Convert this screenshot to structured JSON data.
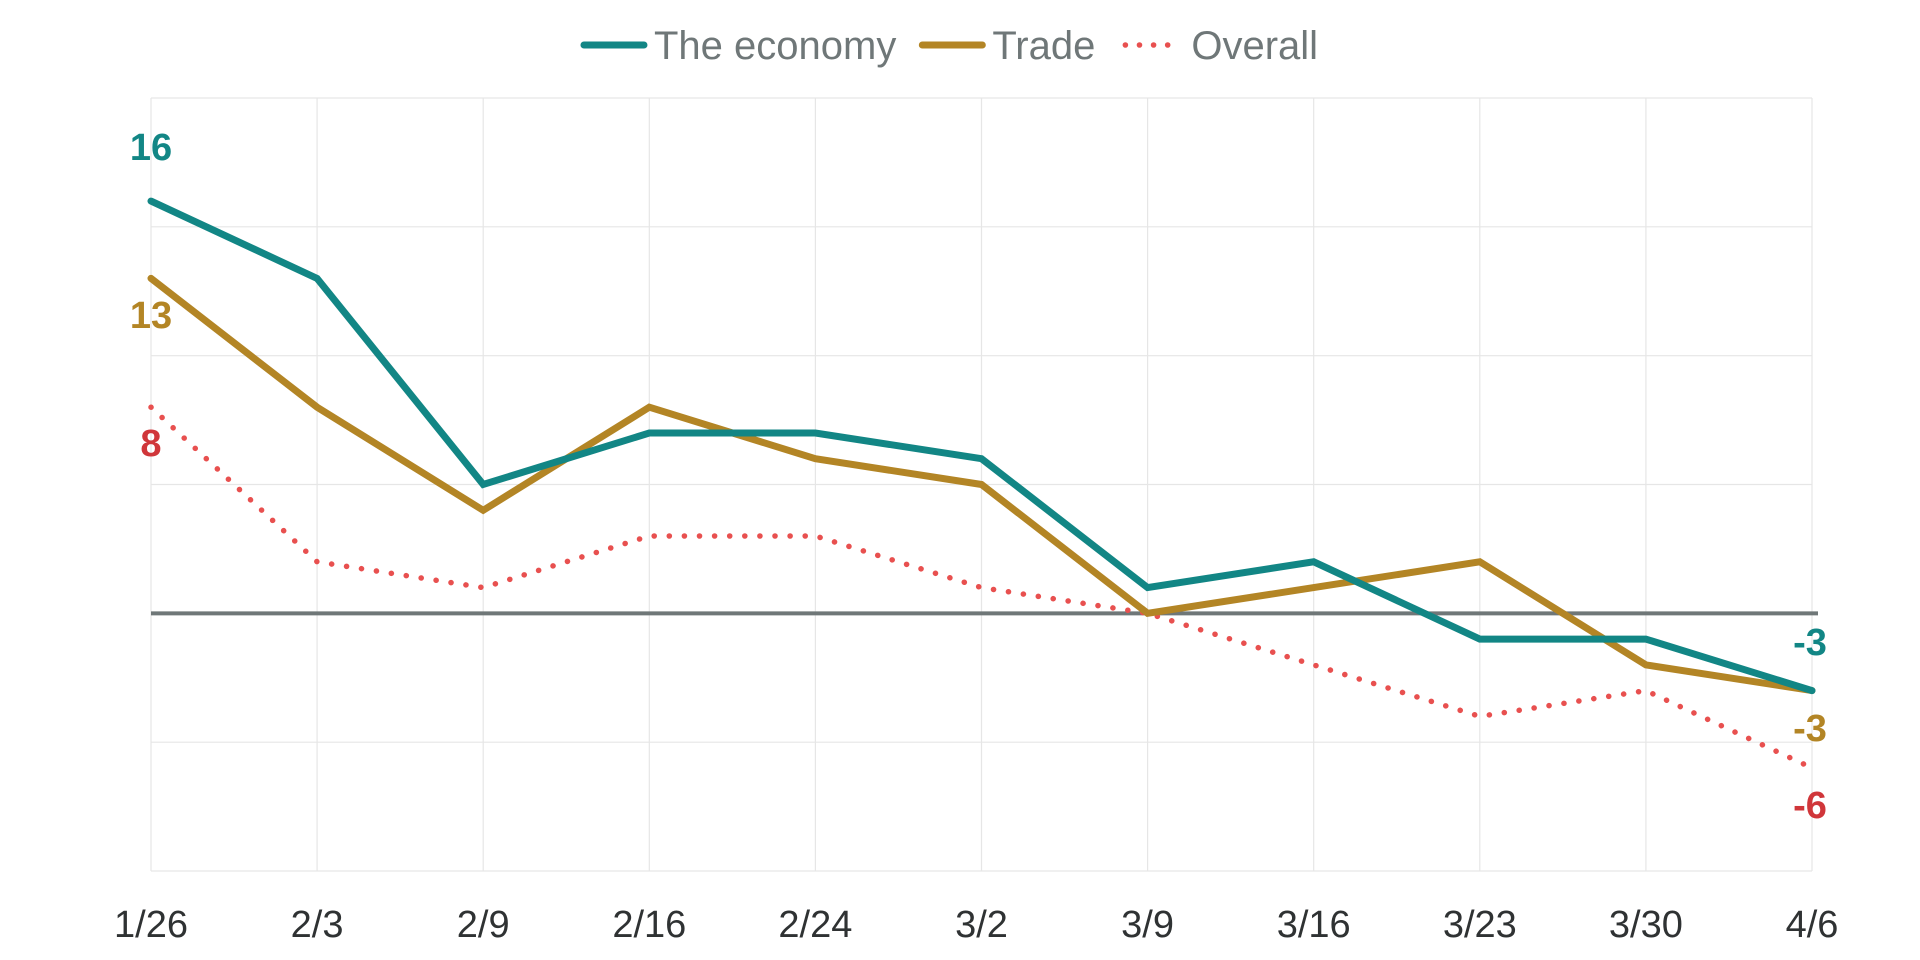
{
  "chart_data": {
    "type": "line",
    "title": "",
    "xlabel": "",
    "ylabel": "",
    "categories": [
      "1/26",
      "2/3",
      "2/9",
      "2/16",
      "2/24",
      "3/2",
      "3/9",
      "3/16",
      "3/23",
      "3/30",
      "4/6"
    ],
    "ylim": [
      -10,
      20
    ],
    "grid": true,
    "legend_position": "top-center",
    "zero_line": true,
    "series": [
      {
        "name": "The economy",
        "color": "#128685",
        "style": "solid",
        "values": [
          16,
          13,
          5,
          7,
          7,
          6,
          1,
          2,
          -1,
          -1,
          -3
        ],
        "start_label": "16",
        "end_label": "-3"
      },
      {
        "name": "Trade",
        "color": "#b38525",
        "style": "solid",
        "values": [
          13,
          8,
          4,
          8,
          6,
          5,
          0,
          1,
          2,
          -2,
          -3
        ],
        "start_label": "13",
        "end_label": "-3"
      },
      {
        "name": "Overall",
        "color": "#e8504f",
        "style": "dotted",
        "values": [
          8,
          2,
          1,
          3,
          3,
          1,
          0,
          -2,
          -4,
          -3,
          -6
        ],
        "start_label": "8",
        "end_label": "-6"
      }
    ],
    "label_colors": {
      "The economy": "#128685",
      "Trade": "#b38525",
      "Overall": "#d0363a"
    },
    "gridline_color": "#e6e6e6",
    "zero_line_color": "#6f7778"
  }
}
